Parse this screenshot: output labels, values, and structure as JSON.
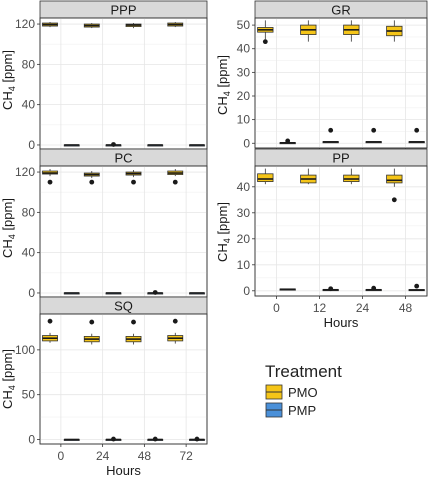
{
  "chart_data": {
    "type": "boxplot",
    "y_label_main": "CH",
    "y_label_sub": "4",
    "y_label_unit": " [ppm]",
    "x_label": "Hours",
    "legend": {
      "title": "Treatment",
      "items": [
        {
          "name": "PMO",
          "color": "#f5c518"
        },
        {
          "name": "PMP",
          "color": "#4a90d9"
        }
      ]
    },
    "panels": [
      {
        "title": "PPP",
        "ylim": [
          -4,
          126
        ],
        "yticks": [
          0,
          40,
          80,
          120
        ],
        "x": [
          0,
          24,
          48,
          72
        ],
        "x_tick_labels": [],
        "series": {
          "PMO": [
            {
              "x": 0,
              "min": 117,
              "q1": 118,
              "median": 119.5,
              "q3": 121,
              "max": 122,
              "outliers": []
            },
            {
              "x": 24,
              "min": 116,
              "q1": 117,
              "median": 118.5,
              "q3": 120,
              "max": 121,
              "outliers": []
            },
            {
              "x": 48,
              "min": 116,
              "q1": 117.5,
              "median": 119,
              "q3": 120,
              "max": 121,
              "outliers": []
            },
            {
              "x": 72,
              "min": 117,
              "q1": 118,
              "median": 119.5,
              "q3": 121,
              "max": 122,
              "outliers": []
            }
          ],
          "PMP": [
            {
              "x": 0,
              "min": -0.3,
              "q1": 0,
              "median": 0,
              "q3": 0.1,
              "max": 0.3,
              "outliers": []
            },
            {
              "x": 24,
              "min": -0.3,
              "q1": 0,
              "median": 0,
              "q3": 0.1,
              "max": 0.3,
              "outliers": [
                0.5
              ]
            },
            {
              "x": 48,
              "min": -0.3,
              "q1": 0,
              "median": 0,
              "q3": 0.1,
              "max": 0.3,
              "outliers": []
            },
            {
              "x": 72,
              "min": -0.3,
              "q1": 0,
              "median": 0,
              "q3": 0.1,
              "max": 0.3,
              "outliers": []
            }
          ]
        }
      },
      {
        "title": "GR",
        "ylim": [
          -2,
          53
        ],
        "yticks": [
          0,
          10,
          20,
          30,
          40,
          50
        ],
        "x": [
          0,
          12,
          24,
          48
        ],
        "x_tick_labels": [
          "0",
          "12",
          "24",
          "48"
        ],
        "series": {
          "PMO": [
            {
              "x": 0,
              "min": 44,
              "q1": 47,
              "median": 48,
              "q3": 49,
              "max": 52,
              "outliers": [
                43
              ]
            },
            {
              "x": 12,
              "min": 43,
              "q1": 46,
              "median": 48,
              "q3": 50,
              "max": 52,
              "outliers": []
            },
            {
              "x": 24,
              "min": 43,
              "q1": 46,
              "median": 48,
              "q3": 50,
              "max": 52,
              "outliers": []
            },
            {
              "x": 48,
              "min": 43,
              "q1": 45.5,
              "median": 47.5,
              "q3": 49.5,
              "max": 52,
              "outliers": []
            }
          ],
          "PMP": [
            {
              "x": 0,
              "min": 0,
              "q1": 0.1,
              "median": 0.2,
              "q3": 0.3,
              "max": 0.4,
              "outliers": [
                1
              ]
            },
            {
              "x": 12,
              "min": 0.4,
              "q1": 0.5,
              "median": 0.6,
              "q3": 0.7,
              "max": 0.8,
              "outliers": [
                5.5
              ]
            },
            {
              "x": 24,
              "min": 0.4,
              "q1": 0.5,
              "median": 0.6,
              "q3": 0.7,
              "max": 0.8,
              "outliers": [
                5.5
              ]
            },
            {
              "x": 48,
              "min": 0.4,
              "q1": 0.5,
              "median": 0.6,
              "q3": 0.7,
              "max": 0.8,
              "outliers": [
                5.5
              ]
            }
          ]
        }
      },
      {
        "title": "PC",
        "ylim": [
          -4,
          126
        ],
        "yticks": [
          0,
          40,
          80,
          120
        ],
        "x": [
          0,
          24,
          48,
          72
        ],
        "x_tick_labels": [],
        "series": {
          "PMO": [
            {
              "x": 0,
              "min": 116,
              "q1": 118,
              "median": 119,
              "q3": 121,
              "max": 123,
              "outliers": [
                110
              ]
            },
            {
              "x": 24,
              "min": 114,
              "q1": 116,
              "median": 117.5,
              "q3": 119,
              "max": 121,
              "outliers": [
                110
              ]
            },
            {
              "x": 48,
              "min": 115,
              "q1": 117,
              "median": 118.5,
              "q3": 120,
              "max": 122,
              "outliers": [
                110
              ]
            },
            {
              "x": 72,
              "min": 116,
              "q1": 117.5,
              "median": 119,
              "q3": 121,
              "max": 123,
              "outliers": [
                110
              ]
            }
          ],
          "PMP": [
            {
              "x": 0,
              "min": -0.3,
              "q1": 0,
              "median": 0,
              "q3": 0.1,
              "max": 0.3,
              "outliers": []
            },
            {
              "x": 24,
              "min": -0.3,
              "q1": 0,
              "median": 0,
              "q3": 0.1,
              "max": 0.3,
              "outliers": []
            },
            {
              "x": 48,
              "min": -0.3,
              "q1": 0,
              "median": 0,
              "q3": 0.1,
              "max": 0.3,
              "outliers": [
                0.5
              ]
            },
            {
              "x": 72,
              "min": -0.3,
              "q1": 0,
              "median": 0,
              "q3": 0.1,
              "max": 0.3,
              "outliers": []
            }
          ]
        }
      },
      {
        "title": "PP",
        "ylim": [
          -2,
          48
        ],
        "yticks": [
          0,
          10,
          20,
          30,
          40
        ],
        "x": [
          0,
          12,
          24,
          48
        ],
        "x_tick_labels": [
          "0",
          "12",
          "24",
          "48"
        ],
        "series": {
          "PMO": [
            {
              "x": 0,
              "min": 41,
              "q1": 42,
              "median": 43,
              "q3": 45,
              "max": 47,
              "outliers": []
            },
            {
              "x": 12,
              "min": 41,
              "q1": 41.5,
              "median": 43,
              "q3": 44.5,
              "max": 47,
              "outliers": []
            },
            {
              "x": 24,
              "min": 41,
              "q1": 42,
              "median": 43,
              "q3": 44.5,
              "max": 47,
              "outliers": []
            },
            {
              "x": 48,
              "min": 40,
              "q1": 41.5,
              "median": 42.5,
              "q3": 44.5,
              "max": 47,
              "outliers": [
                35
              ]
            }
          ],
          "PMP": [
            {
              "x": 0,
              "min": 0.4,
              "q1": 0.5,
              "median": 0.6,
              "q3": 0.7,
              "max": 0.8,
              "outliers": []
            },
            {
              "x": 12,
              "min": 0.2,
              "q1": 0.3,
              "median": 0.4,
              "q3": 0.5,
              "max": 0.6,
              "outliers": [
                0.8
              ]
            },
            {
              "x": 24,
              "min": 0.2,
              "q1": 0.3,
              "median": 0.4,
              "q3": 0.5,
              "max": 0.6,
              "outliers": [
                1
              ]
            },
            {
              "x": 48,
              "min": 0.1,
              "q1": 0.2,
              "median": 0.3,
              "q3": 0.5,
              "max": 0.6,
              "outliers": [
                1.8
              ]
            }
          ]
        }
      },
      {
        "title": "SQ",
        "ylim": [
          -5,
          140
        ],
        "yticks": [
          0,
          50,
          100
        ],
        "x": [
          0,
          24,
          48,
          72
        ],
        "x_tick_labels": [
          "0",
          "24",
          "48",
          "72"
        ],
        "series": {
          "PMO": [
            {
              "x": 0,
              "min": 108,
              "q1": 110,
              "median": 113,
              "q3": 116,
              "max": 119,
              "outliers": [
                132
              ]
            },
            {
              "x": 24,
              "min": 106,
              "q1": 109,
              "median": 112,
              "q3": 115,
              "max": 118,
              "outliers": [
                131
              ]
            },
            {
              "x": 48,
              "min": 106,
              "q1": 109,
              "median": 112,
              "q3": 115,
              "max": 118,
              "outliers": [
                131
              ]
            },
            {
              "x": 72,
              "min": 107,
              "q1": 110,
              "median": 113,
              "q3": 116,
              "max": 119,
              "outliers": [
                132
              ]
            }
          ],
          "PMP": [
            {
              "x": 0,
              "min": -0.5,
              "q1": 0,
              "median": 0,
              "q3": 0.2,
              "max": 0.5,
              "outliers": []
            },
            {
              "x": 24,
              "min": -0.5,
              "q1": 0,
              "median": 0,
              "q3": 0.2,
              "max": 0.5,
              "outliers": [
                0.5
              ]
            },
            {
              "x": 48,
              "min": -0.5,
              "q1": 0,
              "median": 0,
              "q3": 0.2,
              "max": 0.5,
              "outliers": [
                0.5
              ]
            },
            {
              "x": 72,
              "min": -0.5,
              "q1": 0,
              "median": 0,
              "q3": 0.2,
              "max": 0.5,
              "outliers": [
                0.5
              ]
            }
          ]
        }
      }
    ]
  }
}
